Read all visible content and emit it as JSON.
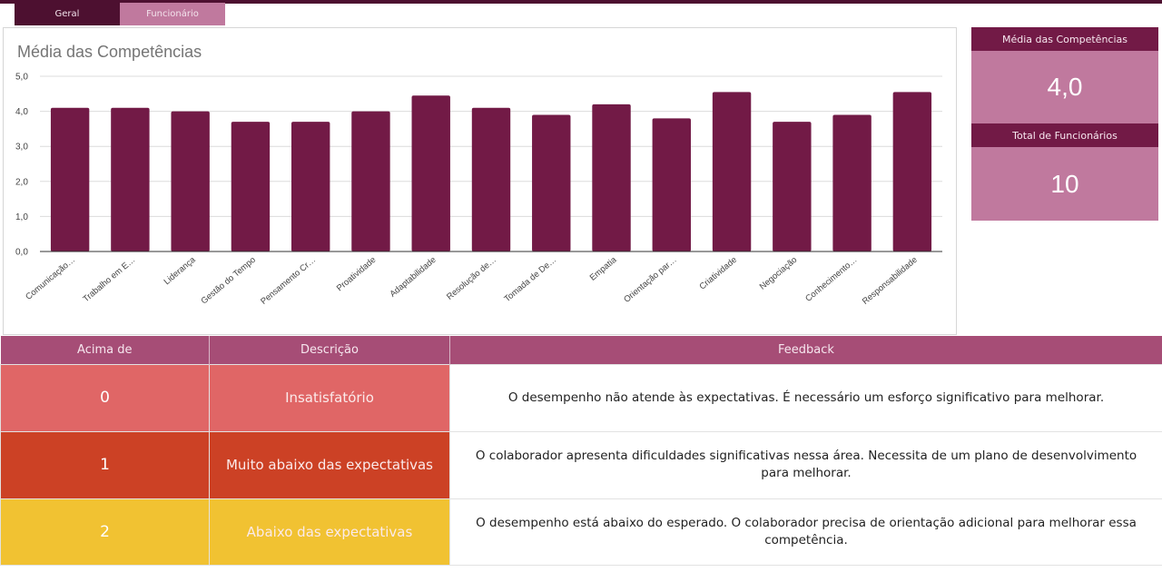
{
  "tabs": [
    {
      "label": "Geral",
      "active": false
    },
    {
      "label": "Funcionário",
      "active": true
    }
  ],
  "colors": {
    "bar": "#721a46",
    "header_dark": "#721a46",
    "tab_dark": "#4d1030",
    "tab_light": "#c0799e",
    "table_header": "#a64d76",
    "level0": "#e06666",
    "level1": "#cc4125",
    "level2": "#f1c232"
  },
  "stats": {
    "avg_label": "Média das Competências",
    "avg_value": "4,0",
    "total_label": "Total de Funcionários",
    "total_value": "10"
  },
  "chart_data": {
    "type": "bar",
    "title": "Média das Competências",
    "xlabel": "",
    "ylabel": "",
    "ylim": [
      0,
      5
    ],
    "yticks": [
      "0,0",
      "1,0",
      "2,0",
      "3,0",
      "4,0",
      "5,0"
    ],
    "grid": true,
    "legend": "none",
    "categories": [
      "Comunicação…",
      "Trabalho em E…",
      "Liderança",
      "Gestão do Tempo",
      "Pensamento Cr…",
      "Proatividade",
      "Adaptabilidade",
      "Resolução de…",
      "Tomada de De…",
      "Empatia",
      "Orientação par…",
      "Criatividade",
      "Negociação",
      "Conhecimento…",
      "Responsabilidade"
    ],
    "values": [
      4.1,
      4.1,
      4.0,
      3.7,
      3.7,
      4.0,
      4.45,
      4.1,
      3.9,
      4.2,
      3.8,
      4.55,
      3.7,
      3.9,
      4.55
    ]
  },
  "table": {
    "headers": [
      "Acima de",
      "Descrição",
      "Feedback"
    ],
    "rows": [
      {
        "value": "0",
        "description": "Insatisfatório",
        "feedback": "O desempenho não atende às expectativas. É necessário um esforço significativo para melhorar."
      },
      {
        "value": "1",
        "description": "Muito abaixo das expectativas",
        "feedback": "O colaborador apresenta dificuldades significativas nessa área. Necessita de um plano de desenvolvimento para melhorar."
      },
      {
        "value": "2",
        "description": "Abaixo das expectativas",
        "feedback": "O desempenho está abaixo do esperado. O colaborador precisa de orientação adicional para melhorar essa competência."
      }
    ]
  }
}
